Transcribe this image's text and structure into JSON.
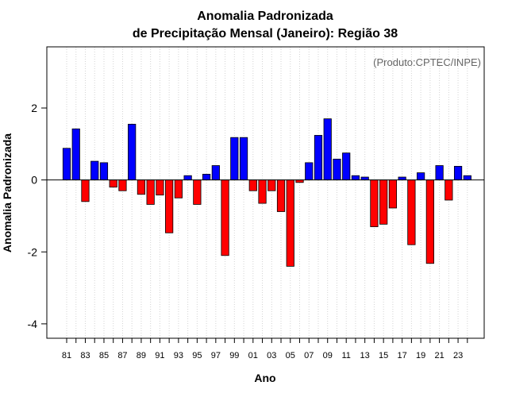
{
  "chart_data": {
    "type": "bar",
    "title": "Anomalia Padronizada",
    "subtitle": "de Precipitação Mensal (Janeiro): Região 38",
    "xlabel": "Ano",
    "ylabel": "Anomalia Padronizada",
    "credit": "(Produto:CPTEC/INPE)",
    "ylim": [
      -4.4,
      3.7
    ],
    "yticks": [
      "-4",
      "-2",
      "0",
      "2"
    ],
    "ytick_values": [
      -4,
      -2,
      0,
      2
    ],
    "categories": [
      "81",
      "82",
      "83",
      "84",
      "85",
      "86",
      "87",
      "88",
      "89",
      "90",
      "91",
      "92",
      "93",
      "94",
      "95",
      "96",
      "97",
      "98",
      "99",
      "00",
      "01",
      "02",
      "03",
      "04",
      "05",
      "06",
      "07",
      "08",
      "09",
      "10",
      "11",
      "12",
      "13",
      "14",
      "15",
      "16",
      "17",
      "18",
      "19",
      "20",
      "21",
      "22",
      "23",
      "24"
    ],
    "xtick_labels": [
      "81",
      "83",
      "85",
      "87",
      "89",
      "91",
      "93",
      "95",
      "97",
      "99",
      "01",
      "03",
      "05",
      "07",
      "09",
      "11",
      "13",
      "15",
      "17",
      "19",
      "21",
      "23"
    ],
    "values": [
      0.88,
      1.42,
      -0.6,
      0.52,
      0.48,
      -0.2,
      -0.3,
      1.55,
      -0.4,
      -0.68,
      -0.42,
      -1.47,
      -0.5,
      0.12,
      -0.68,
      0.16,
      0.4,
      -2.1,
      1.18,
      1.18,
      -0.3,
      -0.65,
      -0.3,
      -0.88,
      -2.4,
      -0.07,
      0.48,
      1.24,
      1.7,
      0.58,
      0.75,
      0.12,
      0.08,
      -1.3,
      -1.23,
      -0.78,
      0.08,
      -1.8,
      0.2,
      -2.32,
      0.4,
      -0.56,
      0.38,
      0.12
    ],
    "grid": "vertical-dotted",
    "colors": {
      "positive": "#0000ff",
      "negative": "#ff0000",
      "outline": "#000000",
      "grid": "#d3d3d3",
      "credit": "#666666"
    }
  }
}
